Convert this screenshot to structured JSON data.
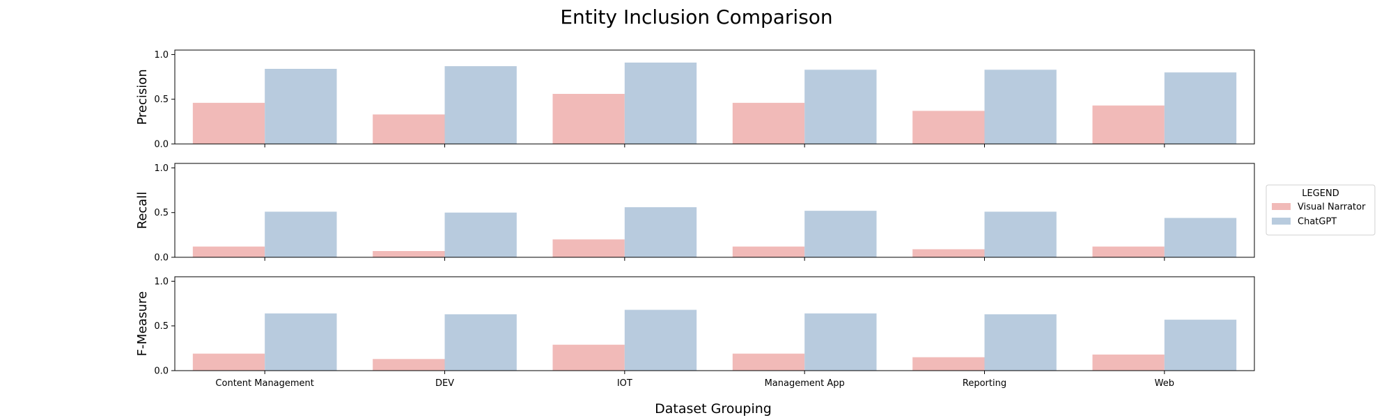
{
  "chart_data": {
    "type": "bar",
    "title": "Entity Inclusion Comparison",
    "xlabel": "Dataset Grouping",
    "categories": [
      "Content Management",
      "DEV",
      "IOT",
      "Management App",
      "Reporting",
      "Web"
    ],
    "legend": {
      "title": "LEGEND",
      "placement": "right",
      "entries": [
        "Visual Narrator",
        "ChatGPT"
      ]
    },
    "colors": {
      "Visual Narrator": "#f1bab8",
      "ChatGPT": "#b8cbde"
    },
    "grid": false,
    "panels": [
      {
        "ylabel": "Precision",
        "ylim": [
          0,
          1.05
        ],
        "yticks": [
          "0.0",
          "0.5",
          "1.0"
        ],
        "series": [
          {
            "name": "Visual Narrator",
            "values": [
              0.46,
              0.33,
              0.56,
              0.46,
              0.37,
              0.43
            ]
          },
          {
            "name": "ChatGPT",
            "values": [
              0.84,
              0.87,
              0.91,
              0.83,
              0.83,
              0.8
            ]
          }
        ]
      },
      {
        "ylabel": "Recall",
        "ylim": [
          0,
          1.05
        ],
        "yticks": [
          "0.0",
          "0.5",
          "1.0"
        ],
        "series": [
          {
            "name": "Visual Narrator",
            "values": [
              0.12,
              0.07,
              0.2,
              0.12,
              0.09,
              0.12
            ]
          },
          {
            "name": "ChatGPT",
            "values": [
              0.51,
              0.5,
              0.56,
              0.52,
              0.51,
              0.44
            ]
          }
        ]
      },
      {
        "ylabel": "F-Measure",
        "ylim": [
          0,
          1.05
        ],
        "yticks": [
          "0.0",
          "0.5",
          "1.0"
        ],
        "series": [
          {
            "name": "Visual Narrator",
            "values": [
              0.19,
              0.13,
              0.29,
              0.19,
              0.15,
              0.18
            ]
          },
          {
            "name": "ChatGPT",
            "values": [
              0.64,
              0.63,
              0.68,
              0.64,
              0.63,
              0.57
            ]
          }
        ]
      }
    ]
  }
}
